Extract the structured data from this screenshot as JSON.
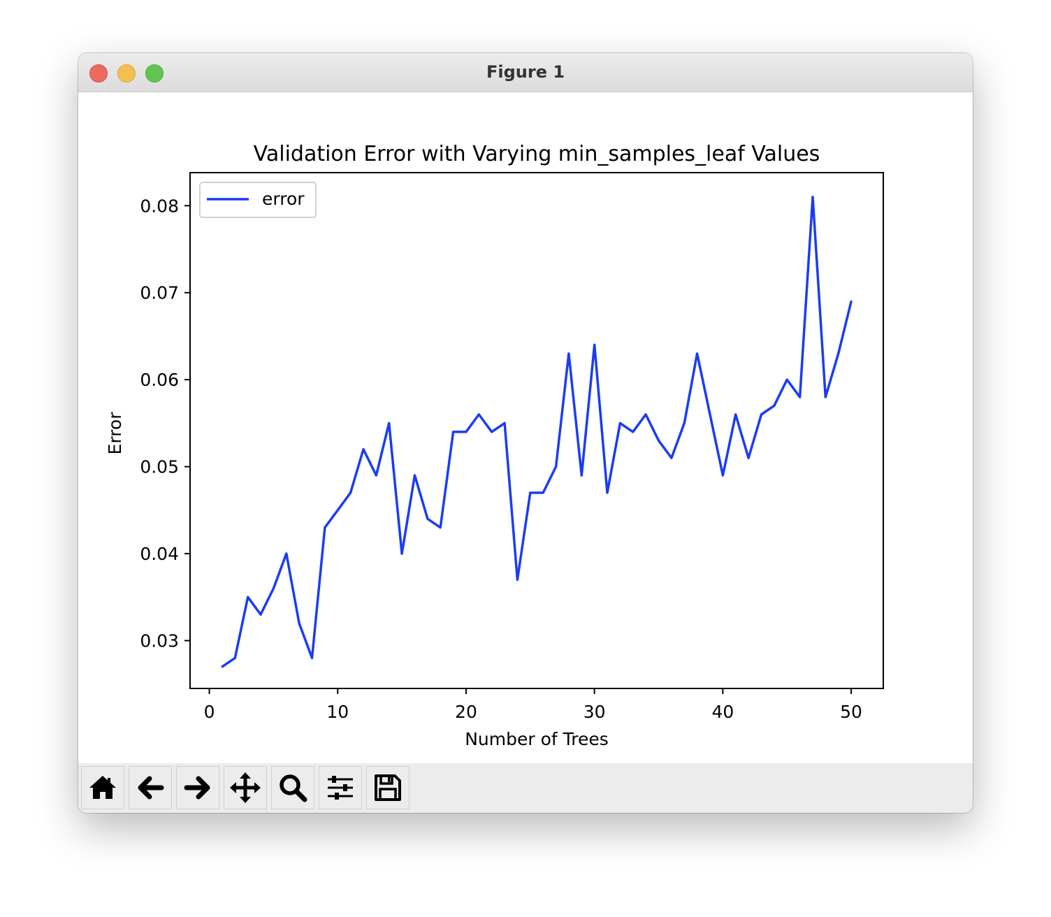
{
  "window": {
    "title": "Figure 1"
  },
  "toolbar": {
    "buttons": [
      {
        "icon": "home-icon"
      },
      {
        "icon": "back-arrow-icon"
      },
      {
        "icon": "forward-arrow-icon"
      },
      {
        "icon": "pan-icon"
      },
      {
        "icon": "zoom-icon"
      },
      {
        "icon": "configure-subplots-icon"
      },
      {
        "icon": "save-icon"
      }
    ]
  },
  "chart_data": {
    "type": "line",
    "title": "Validation Error with Varying min_samples_leaf Values",
    "xlabel": "Number of Trees",
    "ylabel": "Error",
    "xlim": [
      -1.5,
      52.5
    ],
    "ylim": [
      0.0245,
      0.0838
    ],
    "xticks": [
      0,
      10,
      20,
      30,
      40,
      50
    ],
    "xtick_labels": [
      "0",
      "10",
      "20",
      "30",
      "40",
      "50"
    ],
    "yticks": [
      0.03,
      0.04,
      0.05,
      0.06,
      0.07,
      0.08
    ],
    "ytick_labels": [
      "0.03",
      "0.04",
      "0.05",
      "0.06",
      "0.07",
      "0.08"
    ],
    "grid": false,
    "legend": {
      "position": "upper-left",
      "entries": [
        "error"
      ]
    },
    "series": [
      {
        "name": "error",
        "color": "#1a3cf5",
        "x": [
          1,
          2,
          3,
          4,
          5,
          6,
          7,
          8,
          9,
          10,
          11,
          12,
          13,
          14,
          15,
          16,
          17,
          18,
          19,
          20,
          21,
          22,
          23,
          24,
          25,
          26,
          27,
          28,
          29,
          30,
          31,
          32,
          33,
          34,
          35,
          36,
          37,
          38,
          39,
          40,
          41,
          42,
          43,
          44,
          45,
          46,
          47,
          48,
          49,
          50
        ],
        "values": [
          0.027,
          0.028,
          0.035,
          0.033,
          0.036,
          0.04,
          0.032,
          0.028,
          0.043,
          0.045,
          0.047,
          0.052,
          0.049,
          0.055,
          0.04,
          0.049,
          0.044,
          0.043,
          0.054,
          0.054,
          0.056,
          0.054,
          0.055,
          0.037,
          0.047,
          0.047,
          0.05,
          0.063,
          0.049,
          0.064,
          0.047,
          0.055,
          0.054,
          0.056,
          0.053,
          0.051,
          0.055,
          0.063,
          0.056,
          0.049,
          0.056,
          0.051,
          0.056,
          0.057,
          0.06,
          0.058,
          0.081,
          0.058,
          0.063,
          0.069
        ]
      }
    ]
  }
}
